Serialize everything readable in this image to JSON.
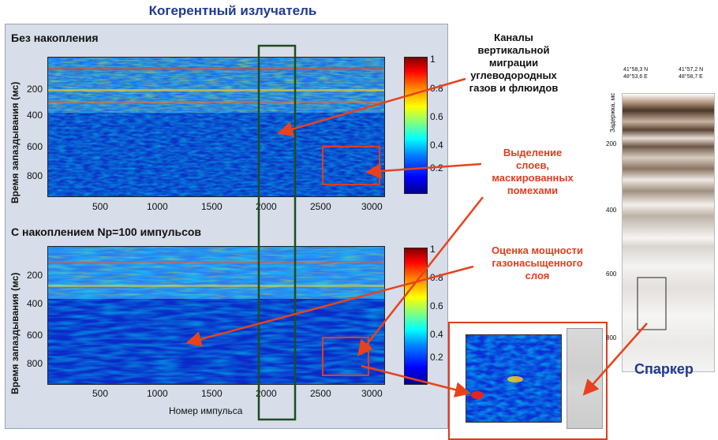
{
  "title": "Когерентный излучатель",
  "panel_top": {
    "title": "Без накопления",
    "ylabel": "Время запаздывания (мс)",
    "y_ticks": [
      "200",
      "400",
      "600",
      "800"
    ],
    "x_ticks": [
      "500",
      "1000",
      "1500",
      "2000",
      "2500",
      "3000"
    ],
    "colorbar_ticks": [
      "1",
      "0.8",
      "0.6",
      "0.4",
      "0.2"
    ]
  },
  "panel_bottom": {
    "title": "С накоплением Np=100 импульсов",
    "ylabel": "Время запаздывания (мс)",
    "y_ticks": [
      "200",
      "400",
      "600",
      "800"
    ],
    "x_ticks": [
      "500",
      "1000",
      "1500",
      "2000",
      "2500",
      "3000"
    ],
    "colorbar_ticks": [
      "1",
      "0.8",
      "0.6",
      "0.4",
      "0.2"
    ],
    "xlabel": "Номер импульса"
  },
  "annotations": {
    "channels": [
      "Каналы",
      "вертикальной",
      "миграции",
      "углеводородных",
      "газов и флюидов"
    ],
    "layers": [
      "Выделение",
      "слоев,",
      "маскированных",
      "помехами"
    ],
    "thickness": [
      "Оценка мощности",
      "газонасыщенного",
      "слоя"
    ]
  },
  "sparker": {
    "label": "Спаркер",
    "ylabel": "Задержка, мс",
    "y_ticks": [
      "200",
      "400",
      "600",
      "800"
    ],
    "coords_left": [
      "41°58,3 N",
      "48°53,6 E"
    ],
    "coords_right": [
      "41°57,2 N",
      "48°58,7 E"
    ]
  },
  "colors": {
    "title_blue": "#1f3a93",
    "annotation_red": "#e03c1f",
    "arrow_red": "#e8421c",
    "highlight_green": "#1e4d1e",
    "highlight_red": "#e03c1f"
  }
}
